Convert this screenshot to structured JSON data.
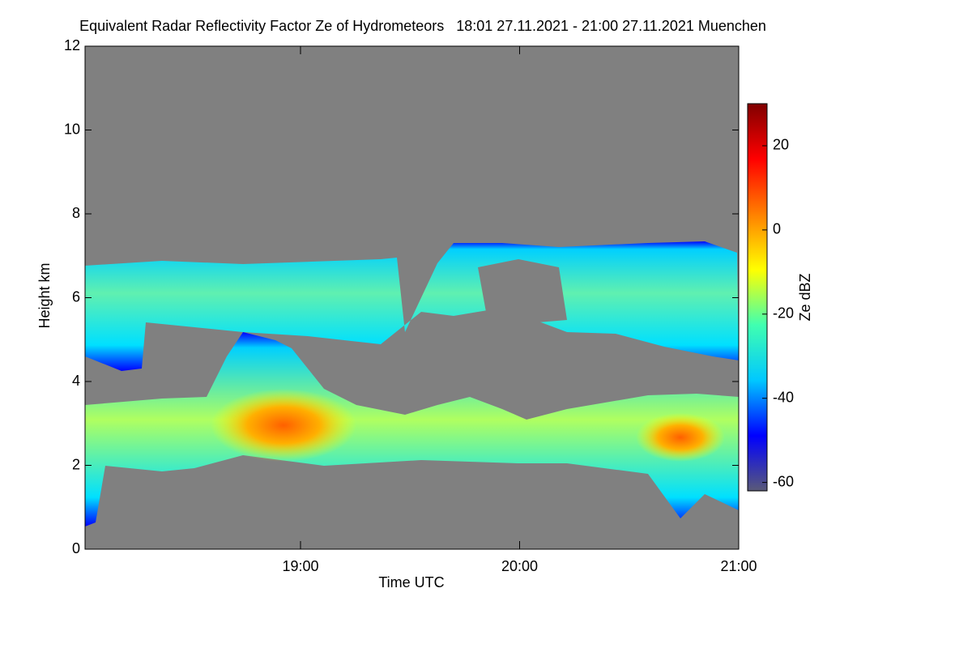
{
  "chart_data": {
    "type": "heatmap",
    "title": "Equivalent Radar Reflectivity Factor Ze of Hydrometeors   18:01 27.11.2021 - 21:00 27.11.2021 Muenchen",
    "x_label": "Time UTC",
    "y_label": "Height km",
    "colorbar_label": "Ze dBZ",
    "xlim": [
      18.0167,
      21.0
    ],
    "xticks": [
      {
        "value": 19,
        "label": "19:00"
      },
      {
        "value": 20,
        "label": "20:00"
      },
      {
        "value": 21,
        "label": "21:00"
      }
    ],
    "ylim": [
      0,
      12
    ],
    "yticks": [
      0,
      2,
      4,
      6,
      8,
      10,
      12
    ],
    "clim": [
      -62,
      30
    ],
    "cticks": [
      -60,
      -40,
      -20,
      0,
      20
    ],
    "colormap": [
      "#5a5a78",
      "#0000ff",
      "#00c8ff",
      "#40ffb0",
      "#ffff00",
      "#ff8000",
      "#ff0000",
      "#800000"
    ],
    "background": "#808080"
  }
}
